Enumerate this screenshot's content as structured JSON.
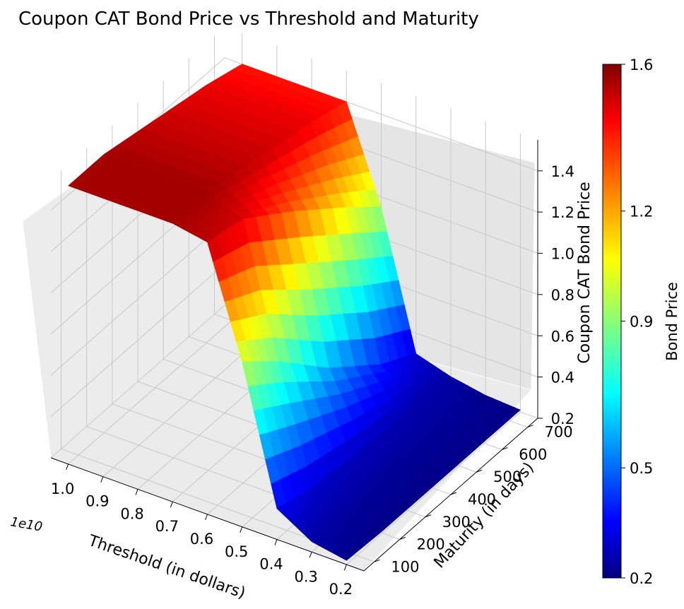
{
  "chart_data": {
    "type": "surface3d",
    "title": "Coupon CAT Bond Price vs Threshold and Maturity",
    "xlabel": "Threshold (in dollars)",
    "x_offset_label": "1e10",
    "ylabel": "Maturity (in days)",
    "zlabel": "Coupon CAT Bond Price",
    "x_ticks": [
      "1.0",
      "0.9",
      "0.8",
      "0.7",
      "0.6",
      "0.5",
      "0.4",
      "0.3",
      "0.2"
    ],
    "y_ticks": [
      "100",
      "200",
      "300",
      "400",
      "500",
      "600",
      "700"
    ],
    "z_ticks": [
      "0.2",
      "0.4",
      "0.6",
      "0.8",
      "1.0",
      "1.2",
      "1.4"
    ],
    "xlim": [
      0.15,
      1.05
    ],
    "ylim": [
      60,
      740
    ],
    "zlim": [
      0.2,
      1.55
    ],
    "colorbar": {
      "label": "Bond Price",
      "ticks": [
        "0.2",
        "0.5",
        "0.9",
        "1.2",
        "1.6"
      ],
      "range": [
        0.2,
        1.6
      ],
      "colormap": "jet"
    },
    "surface": {
      "threshold_x1e10": [
        1.0,
        0.9,
        0.8,
        0.7,
        0.6,
        0.5,
        0.4,
        0.3,
        0.2
      ],
      "maturity_days": [
        60,
        200,
        400,
        600,
        740
      ],
      "price": [
        [
          1.55,
          1.55,
          1.5,
          1.45,
          1.4
        ],
        [
          1.55,
          1.55,
          1.5,
          1.45,
          1.4
        ],
        [
          1.55,
          1.55,
          1.5,
          1.45,
          1.4
        ],
        [
          1.55,
          1.55,
          1.5,
          1.45,
          1.4
        ],
        [
          1.52,
          1.48,
          1.3,
          1.1,
          0.95
        ],
        [
          1.0,
          0.85,
          0.6,
          0.4,
          0.3
        ],
        [
          0.35,
          0.3,
          0.28,
          0.26,
          0.25
        ],
        [
          0.25,
          0.24,
          0.23,
          0.23,
          0.22
        ],
        [
          0.22,
          0.21,
          0.21,
          0.21,
          0.21
        ]
      ]
    },
    "grid": true,
    "legend": "none"
  }
}
